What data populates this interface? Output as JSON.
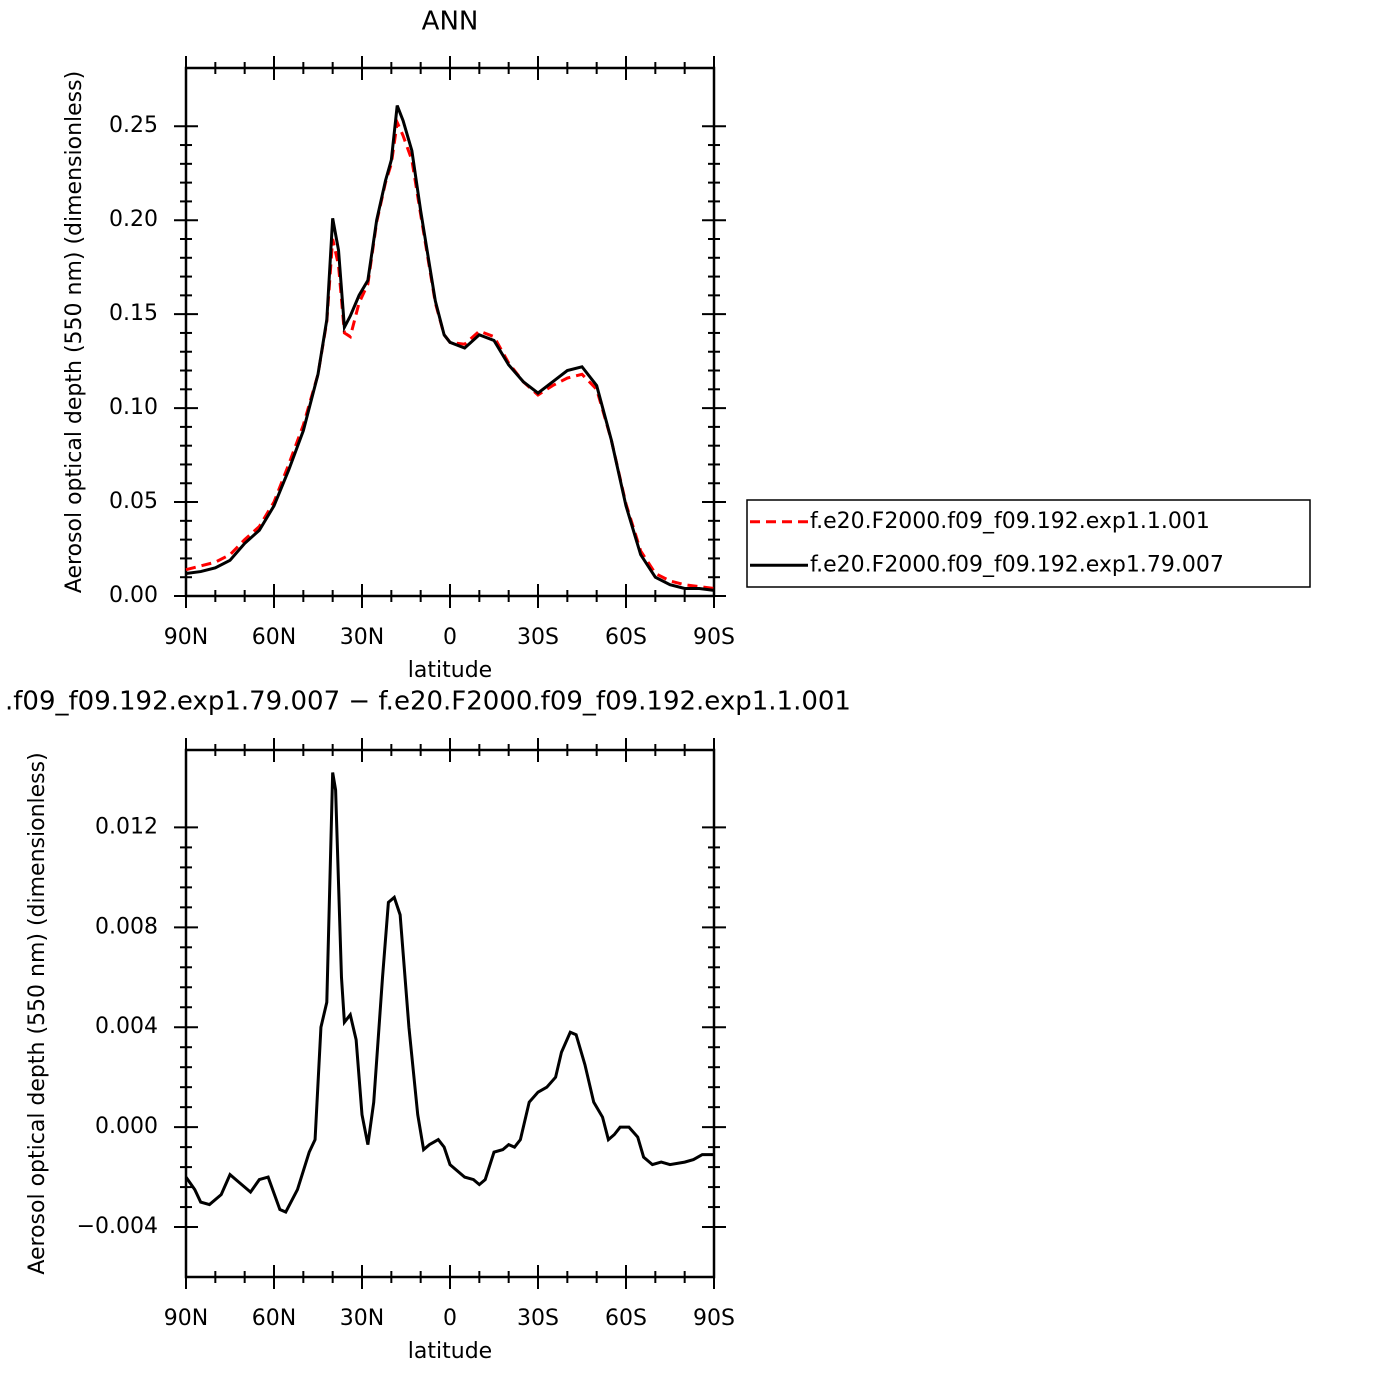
{
  "chart_data": [
    {
      "type": "line",
      "title": "ANN",
      "xlabel": "latitude",
      "ylabel": "Aerosol optical depth (550 nm) (dimensionless)",
      "legend": "right",
      "x": [
        90,
        85,
        80,
        75,
        70,
        65,
        60,
        55,
        50,
        45,
        42,
        40,
        38,
        36,
        34,
        31,
        28,
        25,
        22,
        20,
        18,
        16,
        13,
        10,
        5,
        2,
        0,
        -5,
        -10,
        -15,
        -20,
        -25,
        -30,
        -35,
        -40,
        -45,
        -50,
        -55,
        -60,
        -65,
        -70,
        -75,
        -80,
        -85,
        -90
      ],
      "series": [
        {
          "name": "f.e20.F2000.f09_f09.192.exp1.1.001",
          "color": "#ff0000",
          "dash": true,
          "values": [
            0.014,
            0.016,
            0.018,
            0.022,
            0.03,
            0.037,
            0.05,
            0.07,
            0.091,
            0.118,
            0.146,
            0.19,
            0.176,
            0.14,
            0.138,
            0.156,
            0.166,
            0.199,
            0.22,
            0.23,
            0.252,
            0.245,
            0.232,
            0.203,
            0.156,
            0.139,
            0.135,
            0.134,
            0.141,
            0.138,
            0.124,
            0.114,
            0.107,
            0.112,
            0.116,
            0.118,
            0.11,
            0.083,
            0.049,
            0.024,
            0.012,
            0.008,
            0.006,
            0.005,
            0.004
          ]
        },
        {
          "name": "f.e20.F2000.f09_f09.192.exp1.79.007",
          "color": "#000000",
          "dash": false,
          "values": [
            0.012,
            0.013,
            0.015,
            0.019,
            0.028,
            0.035,
            0.048,
            0.067,
            0.088,
            0.118,
            0.147,
            0.201,
            0.184,
            0.143,
            0.149,
            0.16,
            0.168,
            0.2,
            0.221,
            0.232,
            0.261,
            0.253,
            0.237,
            0.205,
            0.157,
            0.139,
            0.135,
            0.132,
            0.139,
            0.136,
            0.123,
            0.114,
            0.108,
            0.114,
            0.12,
            0.122,
            0.112,
            0.083,
            0.048,
            0.022,
            0.01,
            0.006,
            0.004,
            0.004,
            0.003
          ]
        }
      ],
      "xlim": [
        90,
        -90
      ],
      "ylim": [
        0,
        0.281
      ],
      "xticks": [
        {
          "value": 90,
          "label": "90N"
        },
        {
          "value": 60,
          "label": "60N"
        },
        {
          "value": 30,
          "label": "30N"
        },
        0,
        {
          "value": -30,
          "label": "30S"
        },
        {
          "value": -60,
          "label": "60S"
        },
        {
          "value": -90,
          "label": "90S"
        }
      ],
      "yticks": [
        {
          "value": 0,
          "label": "0.00"
        },
        0.05,
        {
          "value": 0.1,
          "label": "0.10"
        },
        0.15,
        {
          "value": 0.2,
          "label": "0.20"
        },
        0.25
      ]
    },
    {
      "type": "line",
      "title": ".f09_f09.192.exp1.79.007 − f.e20.F2000.f09_f09.192.exp1.1.001",
      "xlabel": "latitude",
      "ylabel": "Aerosol optical depth (550 nm) (dimensionless)",
      "x": [
        90,
        87,
        85,
        82,
        78,
        75,
        72,
        68,
        65,
        62,
        58,
        56,
        52,
        48,
        46,
        44,
        42,
        40,
        39,
        37,
        36,
        34,
        32,
        30,
        28,
        26,
        23,
        21,
        19,
        17,
        14,
        11,
        9,
        7,
        4,
        2,
        0,
        -5,
        -8,
        -10,
        -12,
        -15,
        -18,
        -20,
        -22,
        -24,
        -27,
        -30,
        -33,
        -36,
        -38,
        -41,
        -43,
        -46,
        -49,
        -52,
        -54,
        -56,
        -58,
        -61,
        -64,
        -66,
        -69,
        -72,
        -75,
        -80,
        -83,
        -86,
        -90
      ],
      "series": [
        {
          "color": "#000000",
          "dash": false,
          "values": [
            -0.002,
            -0.0025,
            -0.003,
            -0.0031,
            -0.0027,
            -0.0019,
            -0.0022,
            -0.0026,
            -0.0021,
            -0.002,
            -0.0033,
            -0.0034,
            -0.0025,
            -0.001,
            -0.0005,
            0.004,
            0.005,
            0.0142,
            0.0135,
            0.006,
            0.0042,
            0.0045,
            0.0035,
            0.0005,
            -0.0007,
            0.001,
            0.006,
            0.009,
            0.0092,
            0.0085,
            0.004,
            0.0005,
            -0.0009,
            -0.0007,
            -0.0005,
            -0.0008,
            -0.0015,
            -0.002,
            -0.0021,
            -0.0023,
            -0.0021,
            -0.001,
            -0.0009,
            -0.0007,
            -0.0008,
            -0.0005,
            0.001,
            0.0014,
            0.0016,
            0.002,
            0.003,
            0.0038,
            0.0037,
            0.0025,
            0.001,
            0.0004,
            -0.0005,
            -0.0003,
            0,
            0,
            -0.0004,
            -0.0012,
            -0.0015,
            -0.0014,
            -0.0015,
            -0.0014,
            -0.0013,
            -0.0011,
            -0.0011
          ]
        }
      ],
      "xlim": [
        90,
        -90
      ],
      "ylim": [
        -0.006,
        0.0151
      ],
      "xticks": [
        {
          "value": 90,
          "label": "90N"
        },
        {
          "value": 60,
          "label": "60N"
        },
        {
          "value": 30,
          "label": "30N"
        },
        0,
        {
          "value": -30,
          "label": "30S"
        },
        {
          "value": -60,
          "label": "60S"
        },
        {
          "value": -90,
          "label": "90S"
        }
      ],
      "yticks": [
        {
          "value": -0.004,
          "label": "−0.004"
        },
        {
          "value": 0,
          "label": "0.000"
        },
        0.004,
        0.008,
        0.012
      ]
    }
  ]
}
